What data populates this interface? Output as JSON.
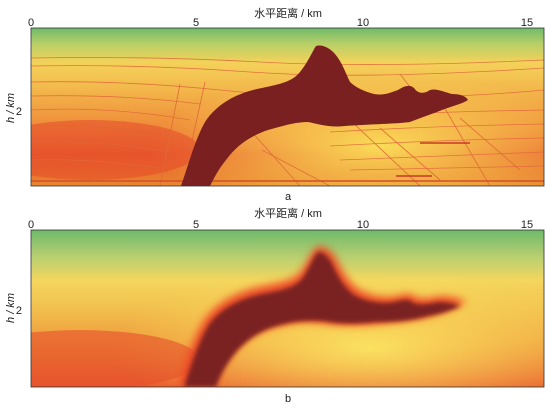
{
  "x_axis": {
    "title": "水平距离 / km",
    "ticks": [
      {
        "value": 0,
        "label": "0"
      },
      {
        "value": 5,
        "label": "5"
      },
      {
        "value": 10,
        "label": "10"
      },
      {
        "value": 15,
        "label": "15"
      }
    ],
    "range": [
      0,
      15.2
    ]
  },
  "y_axis": {
    "title": "h / km",
    "ticks": [
      {
        "value": 2,
        "label": "2"
      }
    ],
    "range": [
      0,
      3.8
    ]
  },
  "panels": [
    {
      "id": "a",
      "caption": "a",
      "style": "sharp"
    },
    {
      "id": "b",
      "caption": "b",
      "style": "smooth"
    }
  ],
  "colors": {
    "salt_body": "#7a2020",
    "top_green": "#7dbf6e",
    "mid_yellow": "#f6d64a",
    "deep_red": "#e64a2a"
  }
}
